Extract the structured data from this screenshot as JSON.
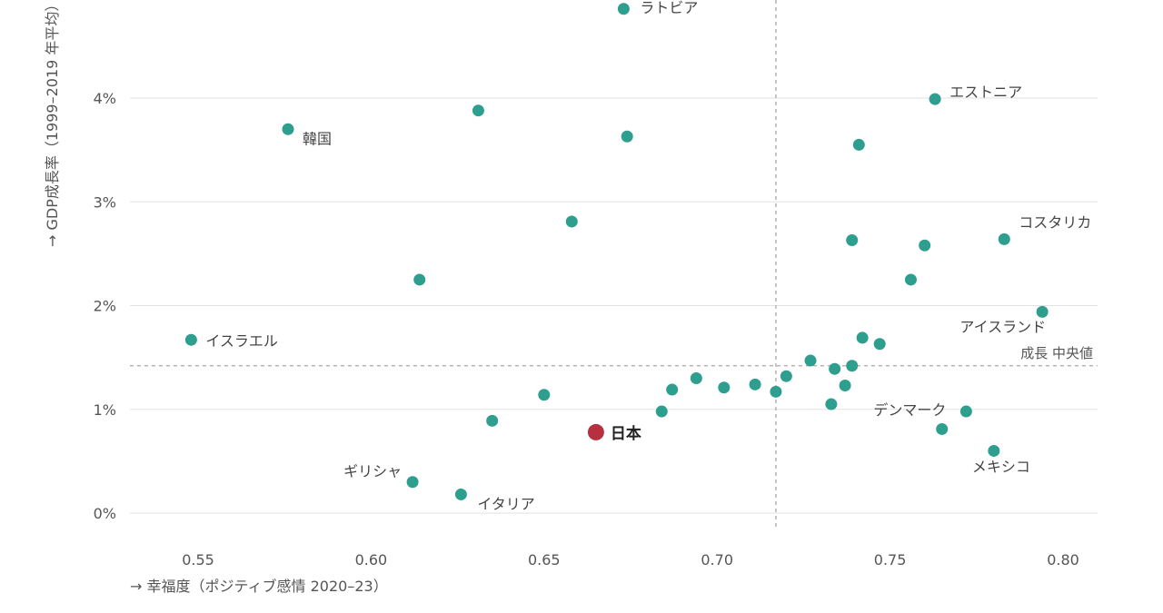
{
  "chart_data": {
    "type": "scatter",
    "xlabel": "→ 幸福度（ポジティブ感情 2020–23）",
    "ylabel": "→ GDP成長率（1999–2019 年平均）",
    "xlim": [
      0.53,
      0.81
    ],
    "ylim": [
      -0.003,
      0.05
    ],
    "x_ticks": [
      0.55,
      0.6,
      0.65,
      0.7,
      0.75,
      0.8
    ],
    "x_tick_labels": [
      "0.55",
      "0.60",
      "0.65",
      "0.70",
      "0.75",
      "0.80"
    ],
    "y_ticks": [
      0,
      0.01,
      0.02,
      0.03,
      0.04
    ],
    "y_tick_labels": [
      "0%",
      "1%",
      "2%",
      "3%",
      "4%"
    ],
    "grid": "horizontal",
    "median_x": 0.717,
    "median_y": 0.0142,
    "median_label": "成長 中央値",
    "colors": {
      "point": "#2e9e8f",
      "highlight": "#b5313f",
      "grid": "#e2e2e2",
      "median": "#aaaaaa"
    },
    "points": [
      {
        "x": 0.673,
        "y": 0.0486,
        "label": "ラトビア"
      },
      {
        "x": 0.763,
        "y": 0.0399,
        "label": "エストニア"
      },
      {
        "x": 0.576,
        "y": 0.037,
        "label": "韓国"
      },
      {
        "x": 0.631,
        "y": 0.0388,
        "label": ""
      },
      {
        "x": 0.674,
        "y": 0.0363,
        "label": ""
      },
      {
        "x": 0.741,
        "y": 0.0355,
        "label": ""
      },
      {
        "x": 0.658,
        "y": 0.0281,
        "label": ""
      },
      {
        "x": 0.739,
        "y": 0.0263,
        "label": ""
      },
      {
        "x": 0.76,
        "y": 0.0258,
        "label": ""
      },
      {
        "x": 0.783,
        "y": 0.0264,
        "label": "コスタリカ"
      },
      {
        "x": 0.614,
        "y": 0.0225,
        "label": ""
      },
      {
        "x": 0.756,
        "y": 0.0225,
        "label": ""
      },
      {
        "x": 0.794,
        "y": 0.0194,
        "label": "アイスランド"
      },
      {
        "x": 0.548,
        "y": 0.0167,
        "label": "イスラエル"
      },
      {
        "x": 0.742,
        "y": 0.0169,
        "label": ""
      },
      {
        "x": 0.747,
        "y": 0.0163,
        "label": ""
      },
      {
        "x": 0.727,
        "y": 0.0147,
        "label": ""
      },
      {
        "x": 0.739,
        "y": 0.0142,
        "label": ""
      },
      {
        "x": 0.734,
        "y": 0.0139,
        "label": ""
      },
      {
        "x": 0.72,
        "y": 0.0132,
        "label": ""
      },
      {
        "x": 0.694,
        "y": 0.013,
        "label": ""
      },
      {
        "x": 0.711,
        "y": 0.0124,
        "label": ""
      },
      {
        "x": 0.737,
        "y": 0.0123,
        "label": ""
      },
      {
        "x": 0.702,
        "y": 0.0121,
        "label": ""
      },
      {
        "x": 0.687,
        "y": 0.0119,
        "label": ""
      },
      {
        "x": 0.717,
        "y": 0.0117,
        "label": ""
      },
      {
        "x": 0.65,
        "y": 0.0114,
        "label": ""
      },
      {
        "x": 0.733,
        "y": 0.0105,
        "label": ""
      },
      {
        "x": 0.684,
        "y": 0.0098,
        "label": ""
      },
      {
        "x": 0.772,
        "y": 0.0098,
        "label": "デンマーク"
      },
      {
        "x": 0.635,
        "y": 0.0089,
        "label": ""
      },
      {
        "x": 0.765,
        "y": 0.0081,
        "label": ""
      },
      {
        "x": 0.665,
        "y": 0.0078,
        "label": "日本",
        "highlight": true
      },
      {
        "x": 0.78,
        "y": 0.006,
        "label": "メキシコ"
      },
      {
        "x": 0.612,
        "y": 0.003,
        "label": "ギリシャ"
      },
      {
        "x": 0.626,
        "y": 0.0018,
        "label": "イタリア"
      }
    ]
  }
}
